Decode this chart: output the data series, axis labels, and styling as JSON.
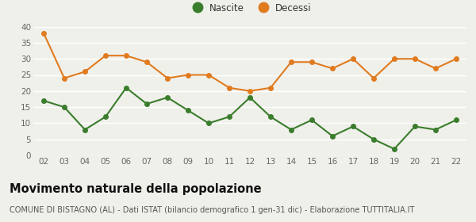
{
  "years": [
    "02",
    "03",
    "04",
    "05",
    "06",
    "07",
    "08",
    "09",
    "10",
    "11",
    "12",
    "13",
    "14",
    "15",
    "16",
    "17",
    "18",
    "19",
    "20",
    "21",
    "22"
  ],
  "nascite": [
    17,
    15,
    8,
    12,
    21,
    16,
    18,
    14,
    10,
    12,
    18,
    12,
    8,
    11,
    6,
    9,
    5,
    2,
    9,
    8,
    11
  ],
  "decessi": [
    38,
    24,
    26,
    31,
    31,
    29,
    24,
    25,
    25,
    21,
    20,
    21,
    29,
    29,
    27,
    30,
    24,
    30,
    30,
    27,
    30
  ],
  "nascite_color": "#3a7d2c",
  "decessi_color": "#e07b20",
  "background_color": "#f0f0eb",
  "grid_color": "#ffffff",
  "ylim": [
    0,
    40
  ],
  "yticks": [
    0,
    5,
    10,
    15,
    20,
    25,
    30,
    35,
    40
  ],
  "title": "Movimento naturale della popolazione",
  "subtitle": "COMUNE DI BISTAGNO (AL) - Dati ISTAT (bilancio demografico 1 gen-31 dic) - Elaborazione TUTTITALIA.IT",
  "legend_nascite": "Nascite",
  "legend_decessi": "Decessi",
  "title_fontsize": 10.5,
  "subtitle_fontsize": 7.0,
  "legend_fontsize": 8.5,
  "tick_fontsize": 7.5,
  "marker_size": 4,
  "line_width": 1.5
}
